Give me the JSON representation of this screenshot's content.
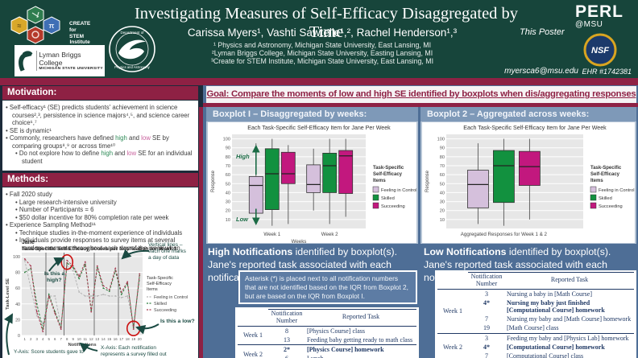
{
  "header": {
    "title": "Investigating Measures of Self-Efficacy Disaggregated by Time",
    "authors": "Carissa Myers¹, Vashti Sawtelle¹,², Rachel Henderson¹,³",
    "affiliations": [
      "¹ Physics and Astronomy, Michigan State University, East Lansing, MI",
      "²Lyman Briggs College, Michigan State University, Easting Lansing, MI",
      "³Create for STEM Institute, Michigan State University, East Lansing, MI"
    ],
    "this_poster": "This Poster",
    "email": "myersca6@msu.edu",
    "perl_line1": "PERL",
    "perl_line2": "@MSU",
    "nsf_text": "NSF",
    "grant": "EHR #1742381",
    "create_logo_line1": "CREATE for STEM",
    "create_logo_line2": "Institute",
    "lyman_line1": "Lyman Briggs College",
    "lyman_line2": "MICHIGAN STATE UNIVERSITY"
  },
  "goal": "Goal: Compare the moments of low and high SE identified by boxplots when dis/aggregating responses",
  "motivation": {
    "header": "Motivation:",
    "bullets": [
      {
        "level": 1,
        "segments": [
          {
            "t": "Self-efficacy¹ (SE) predicts students' achievement in science courses²,³, persistence in science majors⁴,⁵, and science career choice⁶,⁷"
          }
        ]
      },
      {
        "level": 1,
        "segments": [
          {
            "t": "SE is dynamic¹"
          }
        ]
      },
      {
        "level": 1,
        "segments": [
          {
            "t": "Commonly, researchers have defined "
          },
          {
            "t": "high",
            "c": "high_green"
          },
          {
            "t": " and "
          },
          {
            "t": "low",
            "c": "low_pink"
          },
          {
            "t": " SE by comparing groups⁸,⁹ or across time¹⁰"
          }
        ]
      },
      {
        "level": 2,
        "segments": [
          {
            "t": "Do not explore how to define "
          },
          {
            "t": "high",
            "c": "high_green"
          },
          {
            "t": " and "
          },
          {
            "t": "low",
            "c": "low_pink"
          },
          {
            "t": " SE for an individual student"
          }
        ]
      }
    ]
  },
  "methods": {
    "header": "Methods:",
    "bullets": [
      {
        "level": 1,
        "segments": [
          {
            "t": "Fall 2020 study"
          }
        ]
      },
      {
        "level": 2,
        "segments": [
          {
            "t": "Large research-intensive university"
          }
        ]
      },
      {
        "level": 2,
        "segments": [
          {
            "t": "Number of Participants = 6"
          }
        ]
      },
      {
        "level": 2,
        "segments": [
          {
            "t": "$50 dollar incentive for 80% completion rate per week"
          }
        ]
      },
      {
        "level": 1,
        "segments": [
          {
            "t": "Experience Sampling Method¹¹"
          }
        ]
      },
      {
        "level": 2,
        "segments": [
          {
            "t": "Technique studies in-the-moment experience of individuals"
          }
        ]
      },
      {
        "level": 2,
        "segments": [
          {
            "t": "Individuals provide responses to survey items at several random moments throughout each day of the week when prompted"
          }
        ]
      }
    ]
  },
  "boxplot1_header": "Boxplot I – Disaggregated by weeks:",
  "boxplot2_header": "Boxplot 2 – Aggregated across weeks:",
  "high_section": {
    "heading_bold": "High Notifications",
    "heading_rest": " identified by boxplot(s). Jane's reported task associated with each notification:",
    "note": "Asterisk (*) is placed next to all notification numbers that are not identified based on the IQR from Boxplot 2, but are based on the IQR from Boxplot I.",
    "table": {
      "col1": "Notification Number",
      "col2": "Reported Task",
      "groups": [
        {
          "week": "Week 1",
          "rows": [
            {
              "num": "8",
              "task": "[Physics Course] class",
              "bold": false
            },
            {
              "num": "13",
              "task": "Feeding baby getting ready to math class",
              "bold": false
            }
          ]
        },
        {
          "week": "Week 2",
          "rows": [
            {
              "num": "2*",
              "task": "[Physics Course] homework",
              "bold": true
            },
            {
              "num": "6",
              "task": "Lunch",
              "bold": false
            }
          ]
        }
      ]
    }
  },
  "low_section": {
    "heading_bold": "Low Notifications",
    "heading_rest": " identified by boxplot(s). Jane's reported task associated with each notification:",
    "table": {
      "col1": "Notification Number",
      "col2": "Reported Task",
      "groups": [
        {
          "week": "Week 1",
          "rows": [
            {
              "num": "3",
              "task": "Nursing a baby in [Math Course]",
              "bold": false
            },
            {
              "num": "4*",
              "task": "Nursing my baby just finished [Computational Course] homework",
              "bold": true
            },
            {
              "num": "7",
              "task": "Nursing my baby and [Math Course] homework",
              "bold": false
            },
            {
              "num": "19",
              "task": "[Math Course] class",
              "bold": false
            }
          ]
        },
        {
          "week": "Week 2",
          "rows": [
            {
              "num": "3",
              "task": "Feeding my baby and [Physics Lab] homework",
              "bold": false
            },
            {
              "num": "4*",
              "task": "[Computational Course] homework",
              "bold": true
            },
            {
              "num": "7",
              "task": "[Computational Course] class",
              "bold": false
            }
          ]
        }
      ]
    }
  },
  "colors": {
    "msu_green": "#17453b",
    "maroon": "#8e2144",
    "slate": "#4e6e96",
    "card_header": "#7e99b8",
    "card_body": "#b6c5d6",
    "teal_annotation": "#1a4a42",
    "high_green": "#2e8b57",
    "low_pink": "#c9629e",
    "table_navy": "#1f3864",
    "red_circle": "#cc1111",
    "arrow_green": "#1b6b45"
  },
  "chart_data": [
    {
      "id": "jane",
      "type": "line",
      "suptitle": "Jane",
      "title": "Task-Specific Self-Efficacy Scores per Notification for Week 1",
      "xlabel": "Notifications",
      "ylabel": "Task-Level SE",
      "x": [
        1,
        2,
        3,
        4,
        5,
        6,
        7,
        8,
        9,
        10,
        11,
        12,
        13,
        14,
        15,
        16,
        17,
        18,
        19,
        20
      ],
      "yticks": [
        0,
        20,
        40,
        60,
        80,
        100
      ],
      "ylim": [
        0,
        105
      ],
      "day_lines": [
        4.5,
        7.5,
        12.5,
        16.5
      ],
      "legend_title": "Task-Specific Self-Efficacy Items",
      "series": [
        {
          "name": "Feeling in Control",
          "color": "#b3b3b3",
          "values": [
            95,
            60,
            25,
            15,
            50,
            50,
            12,
            88,
            82,
            55,
            50,
            50,
            50,
            52,
            50,
            50,
            48,
            50,
            12,
            70
          ]
        },
        {
          "name": "Skilled",
          "color": "#2e7d3e",
          "values": [
            80,
            85,
            40,
            8,
            52,
            30,
            10,
            92,
            86,
            72,
            90,
            32,
            86,
            60,
            56,
            82,
            52,
            66,
            10,
            76
          ]
        },
        {
          "name": "Succeeding",
          "color": "#a63a50",
          "values": [
            97,
            88,
            30,
            5,
            50,
            28,
            8,
            95,
            88,
            75,
            93,
            30,
            88,
            63,
            58,
            85,
            55,
            68,
            8,
            78
          ]
        }
      ],
      "annotations": {
        "high_circle": {
          "x": 8,
          "y": 93
        },
        "low_circle": {
          "x": 19,
          "y": 9
        },
        "is_this_high": "Is this a high?",
        "is_this_low": "Is this a low?",
        "vertical_lines_note": [
          "Vertical lines –",
          "each one marks",
          "a day of data"
        ],
        "yaxis_note": "Y-Axis: Score students gave to",
        "xaxis_note": [
          "X-Axis: Each notification",
          "represents a survey filled out"
        ]
      }
    },
    {
      "id": "boxplot1",
      "type": "boxplot",
      "title": "Each Task-Specific Self-Efficacy Item for Jane Per Week",
      "xlabel": "Weeks",
      "ylabel": "Response",
      "yticks": [
        10,
        20,
        30,
        40,
        50,
        60,
        70,
        80,
        90,
        100
      ],
      "ylim": [
        0,
        105
      ],
      "legend_title": "Task-Specific Self-Efficacy Items",
      "series_names": [
        "Feeling in Control",
        "Skilled",
        "Succeeding"
      ],
      "series_colors": [
        "#d5c0dc",
        "#12913f",
        "#c2187e"
      ],
      "groups": [
        {
          "label": "Week 1",
          "boxes": [
            {
              "lo": 5,
              "q1": 17,
              "med": 48,
              "q3": 58,
              "hi": 95
            },
            {
              "lo": 3,
              "q1": 21,
              "med": 61,
              "q3": 89,
              "hi": 100
            },
            {
              "lo": 5,
              "q1": 50,
              "med": 61,
              "q3": 85,
              "hi": 93
            }
          ]
        },
        {
          "label": "Week 2",
          "boxes": [
            {
              "lo": 20,
              "q1": 40,
              "med": 49,
              "q3": 71,
              "hi": 89
            },
            {
              "lo": 5,
              "q1": 40,
              "med": 70,
              "q3": 84,
              "hi": 100
            },
            {
              "lo": 13,
              "q1": 39,
              "med": 81,
              "q3": 87,
              "hi": 100
            }
          ]
        }
      ],
      "annotations": {
        "high": "High",
        "low": "Low"
      }
    },
    {
      "id": "boxplot2",
      "type": "boxplot",
      "title": "Each Task-Specific Self-Efficacy Item for Jane Per Week",
      "xlabel": "",
      "ylabel": "Response",
      "yticks": [
        10,
        20,
        30,
        40,
        50,
        60,
        70,
        80,
        90,
        100
      ],
      "ylim": [
        0,
        105
      ],
      "legend_title": "Task-Specific Self-Efficacy Items",
      "series_names": [
        "Feeling in Control",
        "Skilled",
        "Succeeding"
      ],
      "series_colors": [
        "#d5c0dc",
        "#12913f",
        "#c2187e"
      ],
      "groups": [
        {
          "label": "Aggregated Responses for Week 1 & 2",
          "boxes": [
            {
              "lo": 5,
              "q1": 23,
              "med": 49,
              "q3": 65,
              "hi": 95
            },
            {
              "lo": 3,
              "q1": 29,
              "med": 70,
              "q3": 87,
              "hi": 100
            },
            {
              "lo": 10,
              "q1": 48,
              "med": 69,
              "q3": 86,
              "hi": 100
            }
          ]
        }
      ],
      "annotations": null
    }
  ]
}
